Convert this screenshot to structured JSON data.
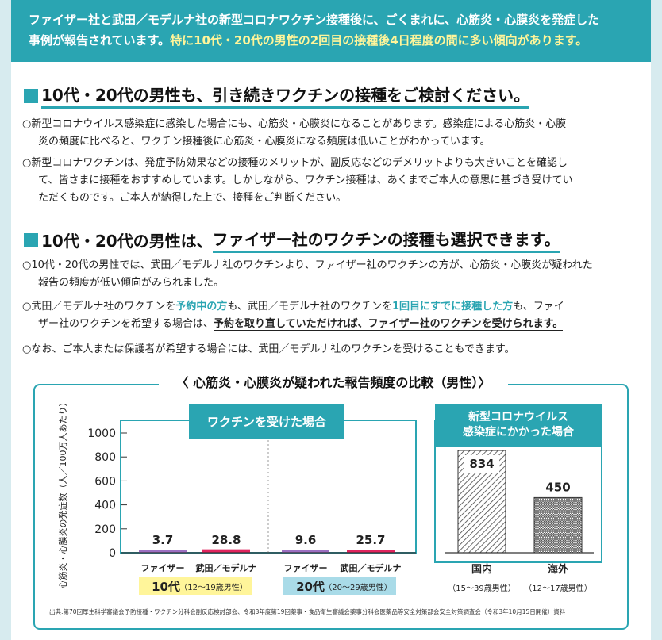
{
  "banner": {
    "line1": "ファイザー社と武田／モデルナ社の新型コロナワクチン接種後に、ごくまれに、心筋炎・心膜炎を発症した",
    "line2_a": "事例が報告されています。",
    "line2_b": "特に10代・20代の男性の2回目の接種後4日程度の間に多い傾向があります。"
  },
  "section1": {
    "heading": "10代・20代の男性も、引き続きワクチンの接種をご検討ください。",
    "p1_l1": "○新型コロナウイルス感染症に感染した場合にも、心筋炎・心膜炎になることがあります。感染症による心筋炎・心膜",
    "p1_l2": "炎の頻度に比べると、ワクチン接種後に心筋炎・心膜炎になる頻度は低いことがわかっています。",
    "p2_l1": "○新型コロナワクチンは、発症予防効果などの接種のメリットが、副反応などのデメリットよりも大きいことを確認し",
    "p2_l2": "て、皆さまに接種をおすすめしています。しかしながら、ワクチン接種は、あくまでご本人の意思に基づき受けてい",
    "p2_l3": "ただくものです。ご本人が納得した上で、接種をご判断ください。"
  },
  "section2": {
    "heading_a": "10代・20代の男性は、",
    "heading_b": "ファイザー社のワクチンの接種も選択できます。",
    "p1_l1": "○10代・20代の男性では、武田／モデルナ社のワクチンより、ファイザー社のワクチンの方が、心筋炎・心膜炎が疑われた",
    "p1_l2": "報告の頻度が低い傾向がみられました。",
    "p2_a": "○武田／モデルナ社のワクチンを",
    "p2_b": "予約中の方",
    "p2_c": "も、武田／モデルナ社のワクチンを",
    "p2_d": "1回目にすでに接種した方",
    "p2_e": "も、ファイ",
    "p2_l2_a": "ザー社のワクチンを希望する場合は、",
    "p2_l2_b": "予約を取り直していただければ、ファイザー社のワクチンを受けられます。",
    "p3": "○なお、ご本人または保護者が希望する場合には、武田／モデルナ社のワクチンを受けることもできます。"
  },
  "chart_data": {
    "type": "bar",
    "title": "〈 心筋炎・心膜炎が疑われた報告頻度の比較（男性）〉",
    "ylabel": "心筋炎・心膜炎の発症数（人／100万人あたり）",
    "ylim": [
      0,
      1000
    ],
    "yticks": [
      "0",
      "200",
      "400",
      "600",
      "800",
      "1000"
    ],
    "left_panel_title": "ワクチンを受けた場合",
    "right_panel_title_l1": "新型コロナウイルス",
    "right_panel_title_l2": "感染症にかかった場合",
    "categories": [
      "ファイザー",
      "武田／モデルナ",
      "ファイザー",
      "武田／モデルナ",
      "国内",
      "海外"
    ],
    "values": [
      3.7,
      28.8,
      9.6,
      25.7,
      834,
      450
    ],
    "value_labels": [
      "3.7",
      "28.8",
      "9.6",
      "25.7",
      "834",
      "450"
    ],
    "groups": [
      {
        "label_a": "10代",
        "label_b": "（12～19歳男性）"
      },
      {
        "label_a": "20代",
        "label_b": "（20～29歳男性）"
      }
    ],
    "infection_ages": [
      "（15～39歳男性）",
      "（12～17歳男性）"
    ],
    "colors": {
      "pfizer": "#9b6fc1",
      "moderna": "#e0245e",
      "teen_bg": "#fff59a",
      "twenties_bg": "#a9dbe8",
      "accent": "#2aa5b2"
    }
  },
  "footnote": "出典:第70回厚生科学審議会予防接種・ワクチン分科会副反応検討部会、令和3年度第19回薬事・食品衛生審議会薬事分科会医薬品等安全対策部会安全対策調査会（令和3年10月15日開催）資料"
}
